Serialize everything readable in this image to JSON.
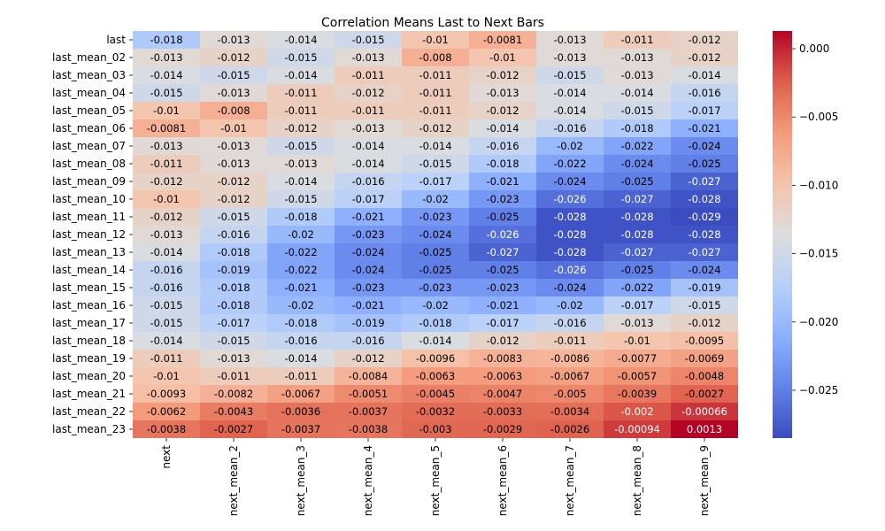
{
  "chart_data": {
    "type": "heatmap",
    "title": "Correlation Means Last to Next Bars",
    "xlabel": "",
    "ylabel": "",
    "colormap": "coolwarm",
    "colorbar_range": [
      -0.0285,
      0.0013
    ],
    "colorbar_ticks": [
      0.0,
      -0.005,
      -0.01,
      -0.015,
      -0.02,
      -0.025
    ],
    "colorbar_tick_labels": [
      "0.000",
      "−0.005",
      "−0.010",
      "−0.015",
      "−0.020",
      "−0.025"
    ],
    "columns": [
      "next",
      "next_mean_2",
      "next_mean_3",
      "next_mean_4",
      "next_mean_5",
      "next_mean_6",
      "next_mean_7",
      "next_mean_8",
      "next_mean_9"
    ],
    "rows": [
      "last",
      "last_mean_02",
      "last_mean_03",
      "last_mean_04",
      "last_mean_05",
      "last_mean_06",
      "last_mean_07",
      "last_mean_08",
      "last_mean_09",
      "last_mean_10",
      "last_mean_11",
      "last_mean_12",
      "last_mean_13",
      "last_mean_14",
      "last_mean_15",
      "last_mean_16",
      "last_mean_17",
      "last_mean_18",
      "last_mean_19",
      "last_mean_20",
      "last_mean_21",
      "last_mean_22",
      "last_mean_23"
    ],
    "labels": [
      [
        "-0.018",
        "-0.013",
        "-0.014",
        "-0.015",
        "-0.01",
        "-0.0081",
        "-0.013",
        "-0.011",
        "-0.012"
      ],
      [
        "-0.013",
        "-0.012",
        "-0.015",
        "-0.013",
        "-0.008",
        "-0.01",
        "-0.013",
        "-0.013",
        "-0.012"
      ],
      [
        "-0.014",
        "-0.015",
        "-0.014",
        "-0.011",
        "-0.011",
        "-0.012",
        "-0.015",
        "-0.013",
        "-0.014"
      ],
      [
        "-0.015",
        "-0.013",
        "-0.011",
        "-0.012",
        "-0.011",
        "-0.013",
        "-0.014",
        "-0.014",
        "-0.016"
      ],
      [
        "-0.01",
        "-0.008",
        "-0.011",
        "-0.011",
        "-0.011",
        "-0.012",
        "-0.014",
        "-0.015",
        "-0.017"
      ],
      [
        "-0.0081",
        "-0.01",
        "-0.012",
        "-0.013",
        "-0.012",
        "-0.014",
        "-0.016",
        "-0.018",
        "-0.021"
      ],
      [
        "-0.013",
        "-0.013",
        "-0.015",
        "-0.014",
        "-0.014",
        "-0.016",
        "-0.02",
        "-0.022",
        "-0.024"
      ],
      [
        "-0.011",
        "-0.013",
        "-0.013",
        "-0.014",
        "-0.015",
        "-0.018",
        "-0.022",
        "-0.024",
        "-0.025"
      ],
      [
        "-0.012",
        "-0.012",
        "-0.014",
        "-0.016",
        "-0.017",
        "-0.021",
        "-0.024",
        "-0.025",
        "-0.027"
      ],
      [
        "-0.01",
        "-0.012",
        "-0.015",
        "-0.017",
        "-0.02",
        "-0.023",
        "-0.026",
        "-0.027",
        "-0.028"
      ],
      [
        "-0.012",
        "-0.015",
        "-0.018",
        "-0.021",
        "-0.023",
        "-0.025",
        "-0.028",
        "-0.028",
        "-0.029"
      ],
      [
        "-0.013",
        "-0.016",
        "-0.02",
        "-0.023",
        "-0.024",
        "-0.026",
        "-0.028",
        "-0.028",
        "-0.028"
      ],
      [
        "-0.014",
        "-0.018",
        "-0.022",
        "-0.024",
        "-0.025",
        "-0.027",
        "-0.028",
        "-0.027",
        "-0.027"
      ],
      [
        "-0.016",
        "-0.019",
        "-0.022",
        "-0.024",
        "-0.025",
        "-0.025",
        "-0.026",
        "-0.025",
        "-0.024"
      ],
      [
        "-0.016",
        "-0.018",
        "-0.021",
        "-0.023",
        "-0.023",
        "-0.023",
        "-0.024",
        "-0.022",
        "-0.019"
      ],
      [
        "-0.015",
        "-0.018",
        "-0.02",
        "-0.021",
        "-0.02",
        "-0.021",
        "-0.02",
        "-0.017",
        "-0.015"
      ],
      [
        "-0.015",
        "-0.017",
        "-0.018",
        "-0.019",
        "-0.018",
        "-0.017",
        "-0.016",
        "-0.013",
        "-0.012"
      ],
      [
        "-0.014",
        "-0.015",
        "-0.016",
        "-0.016",
        "-0.014",
        "-0.012",
        "-0.011",
        "-0.01",
        "-0.0095"
      ],
      [
        "-0.011",
        "-0.013",
        "-0.014",
        "-0.012",
        "-0.0096",
        "-0.0083",
        "-0.0086",
        "-0.0077",
        "-0.0069"
      ],
      [
        "-0.01",
        "-0.011",
        "-0.011",
        "-0.0084",
        "-0.0063",
        "-0.0063",
        "-0.0067",
        "-0.0057",
        "-0.0048"
      ],
      [
        "-0.0093",
        "-0.0082",
        "-0.0067",
        "-0.0051",
        "-0.0045",
        "-0.0047",
        "-0.005",
        "-0.0039",
        "-0.0027"
      ],
      [
        "-0.0062",
        "-0.0043",
        "-0.0036",
        "-0.0037",
        "-0.0032",
        "-0.0033",
        "-0.0034",
        "-0.002",
        "-0.00066"
      ],
      [
        "-0.0038",
        "-0.0027",
        "-0.0037",
        "-0.0038",
        "-0.003",
        "-0.0029",
        "-0.0026",
        "-0.00094",
        "0.0013"
      ]
    ]
  }
}
